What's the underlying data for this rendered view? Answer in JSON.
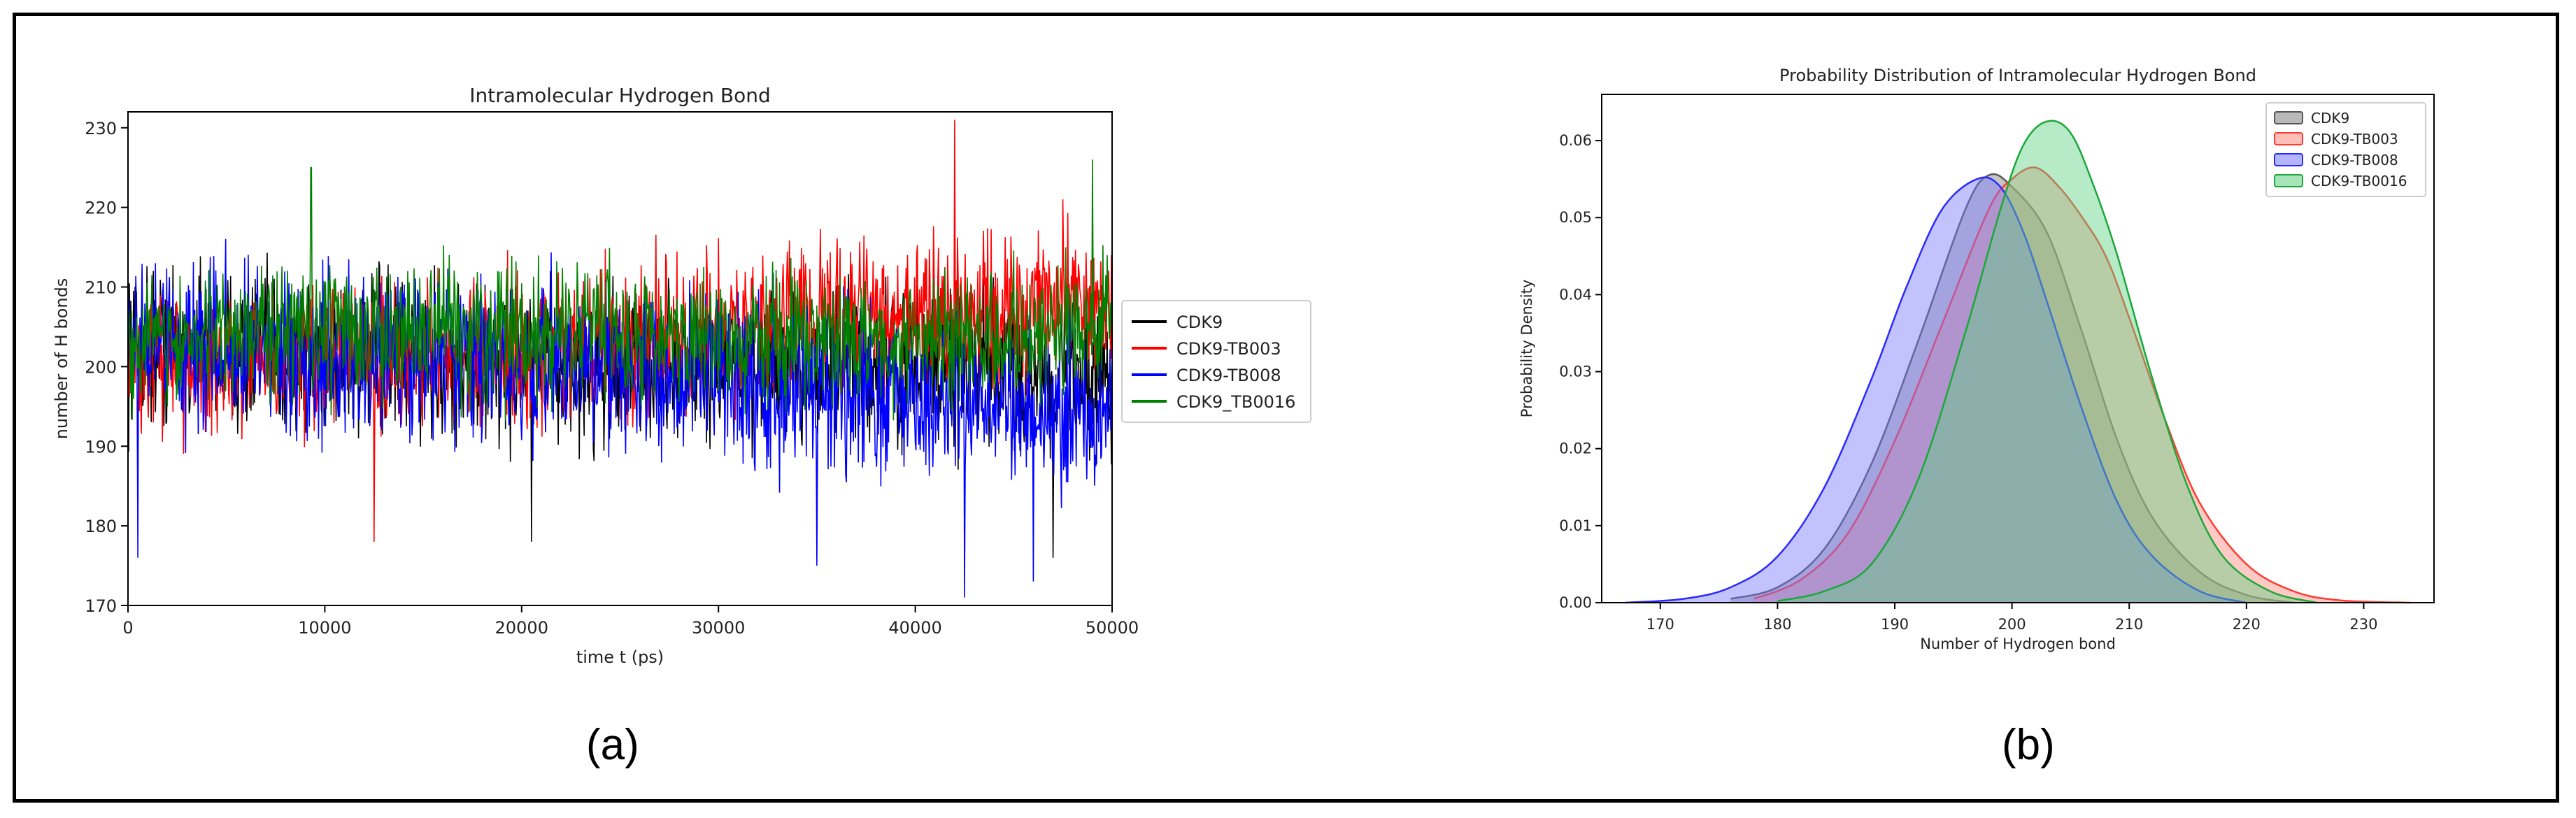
{
  "chart_data": [
    {
      "type": "line",
      "title": "Intramolecular Hydrogen Bond",
      "xlabel": "time t (ps)",
      "ylabel": "number of H bonds",
      "xlim": [
        0,
        50000
      ],
      "ylim": [
        170,
        232
      ],
      "xticks": [
        0,
        10000,
        20000,
        30000,
        40000,
        50000
      ],
      "yticks": [
        170,
        180,
        190,
        200,
        210,
        220,
        230
      ],
      "legend_position": "right",
      "grid": false,
      "series": [
        {
          "name": "CDK9",
          "color": "#000000",
          "profile": [
            [
              0,
              203
            ],
            [
              10000,
              201
            ],
            [
              20000,
              200
            ],
            [
              30000,
              200
            ],
            [
              40000,
              200
            ],
            [
              50000,
              199
            ]
          ],
          "spread": 8.5,
          "extremes": [
            [
              20500,
              178
            ],
            [
              47000,
              176
            ]
          ]
        },
        {
          "name": "CDK9-TB003",
          "color": "#ff0000",
          "profile": [
            [
              0,
              200
            ],
            [
              10000,
              201
            ],
            [
              20000,
              202
            ],
            [
              30000,
              205
            ],
            [
              40000,
              207
            ],
            [
              50000,
              208
            ]
          ],
          "spread": 8,
          "extremes": [
            [
              12500,
              178
            ],
            [
              42000,
              231
            ],
            [
              47500,
              221
            ]
          ]
        },
        {
          "name": "CDK9-TB008",
          "color": "#0000ff",
          "profile": [
            [
              0,
              203
            ],
            [
              10000,
              202
            ],
            [
              20000,
              200
            ],
            [
              30000,
              199
            ],
            [
              40000,
              196
            ],
            [
              50000,
              194
            ]
          ],
          "spread": 9,
          "extremes": [
            [
              500,
              176
            ],
            [
              42500,
              171
            ],
            [
              46000,
              173
            ],
            [
              35000,
              175
            ]
          ]
        },
        {
          "name": "CDK9_TB0016",
          "color": "#008000",
          "profile": [
            [
              0,
              203
            ],
            [
              10000,
              205
            ],
            [
              20000,
              204
            ],
            [
              30000,
              204
            ],
            [
              40000,
              203
            ],
            [
              50000,
              205
            ]
          ],
          "spread": 7,
          "extremes": [
            [
              9300,
              225
            ],
            [
              49000,
              226
            ]
          ]
        }
      ]
    },
    {
      "type": "area",
      "title": "Probability Distribution of Intramolecular Hydrogen Bond",
      "xlabel": "Number of Hydrogen bond",
      "ylabel": "Probability Density",
      "xlim": [
        165,
        236
      ],
      "ylim": [
        0,
        0.066
      ],
      "xticks": [
        170,
        180,
        190,
        200,
        210,
        220,
        230
      ],
      "yticks": [
        "0.00",
        "0.01",
        "0.02",
        "0.03",
        "0.04",
        "0.05",
        "0.06"
      ],
      "ytick_values": [
        0,
        0.01,
        0.02,
        0.03,
        0.04,
        0.05,
        0.06
      ],
      "legend_position": "top-right",
      "grid": false,
      "series": [
        {
          "name": "CDK9",
          "color": "#555555",
          "fill": "#808080",
          "x": [
            176,
            180,
            184,
            188,
            192,
            196,
            198,
            200,
            203,
            206,
            209,
            212,
            216,
            220,
            224
          ],
          "y": [
            0.0005,
            0.002,
            0.007,
            0.018,
            0.034,
            0.051,
            0.0555,
            0.054,
            0.048,
            0.035,
            0.021,
            0.011,
            0.004,
            0.001,
            0
          ]
        },
        {
          "name": "CDK9-TB003",
          "color": "#ff3b30",
          "fill": "#ff8a80",
          "x": [
            178,
            182,
            186,
            190,
            194,
            198,
            200,
            202,
            204,
            206,
            208,
            210,
            213,
            216,
            220,
            224,
            228,
            234
          ],
          "y": [
            0.0005,
            0.003,
            0.009,
            0.021,
            0.036,
            0.051,
            0.055,
            0.0565,
            0.054,
            0.05,
            0.045,
            0.037,
            0.024,
            0.013,
            0.005,
            0.0015,
            0.0003,
            0
          ]
        },
        {
          "name": "CDK9-TB008",
          "color": "#2a2aff",
          "fill": "#7777ff",
          "x": [
            167,
            172,
            176,
            180,
            184,
            188,
            191,
            194,
            197,
            199,
            201,
            203,
            206,
            209,
            212,
            216,
            220
          ],
          "y": [
            0,
            0.0005,
            0.002,
            0.006,
            0.015,
            0.029,
            0.041,
            0.051,
            0.055,
            0.054,
            0.048,
            0.039,
            0.025,
            0.013,
            0.006,
            0.0015,
            0
          ]
        },
        {
          "name": "CDK9-TB0016",
          "color": "#1aa83a",
          "fill": "#5fd080",
          "x": [
            180,
            184,
            188,
            192,
            196,
            199,
            201,
            203,
            205,
            207,
            209,
            212,
            215,
            218,
            222,
            226
          ],
          "y": [
            0.0002,
            0.0015,
            0.005,
            0.016,
            0.035,
            0.051,
            0.0595,
            0.0625,
            0.061,
            0.054,
            0.045,
            0.029,
            0.015,
            0.006,
            0.0015,
            0
          ]
        }
      ]
    }
  ],
  "captions": {
    "a": "(a)",
    "b": "(b)"
  }
}
